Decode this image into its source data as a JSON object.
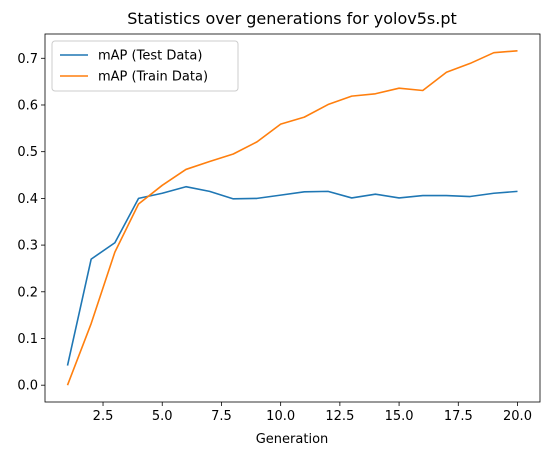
{
  "chart_data": {
    "type": "line",
    "title": "Statistics over generations for yolov5s.pt",
    "xlabel": "Generation",
    "ylabel": "",
    "xlim": [
      0.05,
      20.95
    ],
    "ylim": [
      -0.036,
      0.752
    ],
    "xticks": [
      2.5,
      5.0,
      7.5,
      10.0,
      12.5,
      15.0,
      17.5,
      20.0
    ],
    "xtick_labels": [
      "2.5",
      "5.0",
      "7.5",
      "10.0",
      "12.5",
      "15.0",
      "17.5",
      "20.0"
    ],
    "yticks": [
      0.0,
      0.1,
      0.2,
      0.3,
      0.4,
      0.5,
      0.6,
      0.7
    ],
    "ytick_labels": [
      "0.0",
      "0.1",
      "0.2",
      "0.3",
      "0.4",
      "0.5",
      "0.6",
      "0.7"
    ],
    "grid": false,
    "legend_position": "top-left",
    "x": [
      1,
      2,
      3,
      4,
      5,
      6,
      7,
      8,
      9,
      10,
      11,
      12,
      13,
      14,
      15,
      16,
      17,
      18,
      19,
      20
    ],
    "series": [
      {
        "name": "mAP (Test Data)",
        "color": "#1f77b4",
        "values": [
          0.042,
          0.27,
          0.305,
          0.4,
          0.411,
          0.425,
          0.415,
          0.399,
          0.4,
          0.407,
          0.414,
          0.415,
          0.401,
          0.409,
          0.401,
          0.406,
          0.406,
          0.404,
          0.411,
          0.415
        ]
      },
      {
        "name": "mAP (Train Data)",
        "color": "#ff7f0e",
        "values": [
          0.0,
          0.132,
          0.285,
          0.388,
          0.428,
          0.462,
          0.479,
          0.495,
          0.521,
          0.559,
          0.574,
          0.601,
          0.619,
          0.624,
          0.636,
          0.631,
          0.67,
          0.689,
          0.712,
          0.716
        ]
      }
    ]
  }
}
